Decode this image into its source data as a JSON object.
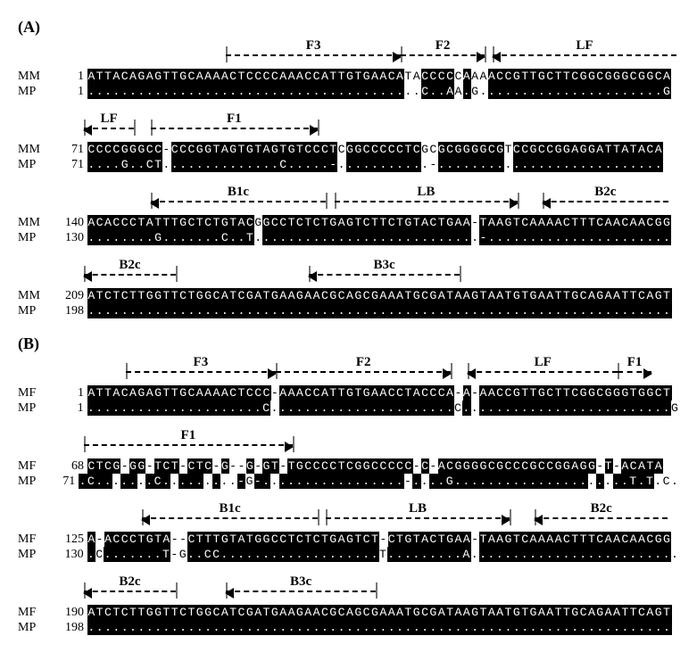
{
  "panelA": {
    "label": "(A)",
    "charWidth": 9.35,
    "rows": [
      {
        "primers": [
          {
            "name": "F3",
            "start": 17,
            "end": 37,
            "dir": "right"
          },
          {
            "name": "F2",
            "start": 38,
            "end": 47,
            "dir": "right",
            "continues": true
          },
          {
            "name": "LF",
            "start": 49,
            "end": 70,
            "dir": "left",
            "continues": true
          }
        ],
        "seqs": [
          {
            "label": "MM",
            "pos": 1,
            "seq": "ATTACAGAGTTGCAAAACTCCCCAAACCATTGTGAACATACCCCCAAAACCGTTGCTTCGGCGGGCGGCA",
            "highlight": [
              [
                0,
                37
              ],
              [
                40,
                43
              ],
              [
                45,
                45
              ],
              [
                48,
                69
              ]
            ]
          },
          {
            "label": "MP",
            "pos": 1,
            "seq": "........................................C..AA.G......................G",
            "highlight": [
              [
                0,
                37
              ],
              [
                40,
                43
              ],
              [
                45,
                45
              ],
              [
                48,
                69
              ]
            ]
          }
        ]
      },
      {
        "primers": [
          {
            "name": "LF",
            "start": 0,
            "end": 5,
            "dir": "left"
          },
          {
            "name": "F1",
            "start": 8,
            "end": 27,
            "dir": "right"
          }
        ],
        "seqs": [
          {
            "label": "MM",
            "pos": 71,
            "seq": "CCCCGGGCC-CCCGGTAGTGTAGTGTCCCTCGGCCCCCTCGCGCGGGGCGTCCGCCGGAGGATTATACA",
            "highlight": [
              [
                0,
                4
              ],
              [
                5,
                8
              ],
              [
                10,
                17
              ],
              [
                18,
                22
              ],
              [
                23,
                25
              ],
              [
                26,
                29
              ],
              [
                31,
                39
              ],
              [
                42,
                49
              ],
              [
                51,
                68
              ]
            ]
          },
          {
            "label": "MP",
            "pos": 71,
            "seq": "....G..CT..............C.....-...........-...........................",
            "highlight": [
              [
                0,
                4
              ],
              [
                5,
                8
              ],
              [
                10,
                17
              ],
              [
                18,
                22
              ],
              [
                23,
                25
              ],
              [
                26,
                29
              ],
              [
                31,
                39
              ],
              [
                42,
                49
              ],
              [
                51,
                68
              ]
            ]
          }
        ]
      },
      {
        "primers": [
          {
            "name": "B1c",
            "start": 8,
            "end": 28,
            "dir": "left"
          },
          {
            "name": "LB",
            "start": 30,
            "end": 51,
            "dir": "right"
          },
          {
            "name": "B2c",
            "start": 55,
            "end": 69,
            "dir": "left",
            "continues": true
          }
        ],
        "seqs": [
          {
            "label": "MM",
            "pos": 140,
            "seq": "ACACCCTATTTGCTCTGTACGGCCTCTCTGAGTCTTCTGTACTGAA-TAAGTCAAAACTTTCAACAACGG",
            "highlight": [
              [
                0,
                6
              ],
              [
                7,
                8
              ],
              [
                9,
                12
              ],
              [
                13,
                14
              ],
              [
                15,
                16
              ],
              [
                17,
                19
              ],
              [
                21,
                45
              ],
              [
                47,
                69
              ]
            ]
          },
          {
            "label": "MP",
            "pos": 130,
            "seq": "........G.......C..T...........................-......................",
            "highlight": [
              [
                0,
                6
              ],
              [
                7,
                8
              ],
              [
                9,
                12
              ],
              [
                13,
                14
              ],
              [
                15,
                16
              ],
              [
                17,
                19
              ],
              [
                21,
                45
              ],
              [
                47,
                69
              ]
            ]
          }
        ]
      },
      {
        "primers": [
          {
            "name": "B2c",
            "start": 0,
            "end": 10,
            "dir": "left"
          },
          {
            "name": "B3c",
            "start": 27,
            "end": 44,
            "dir": "left"
          }
        ],
        "seqs": [
          {
            "label": "MM",
            "pos": 209,
            "seq": "ATCTCTTGGTTCTGGCATCGATGAAGAACGCAGCGAAATGCGATAAGTAATGTGAATTGCAGAATTCAGT",
            "highlight": [
              [
                0,
                69
              ]
            ]
          },
          {
            "label": "MP",
            "pos": 198,
            "seq": "......................................................................",
            "highlight": [
              [
                0,
                69
              ]
            ]
          }
        ]
      }
    ]
  },
  "panelB": {
    "label": "(B)",
    "charWidth": 9.35,
    "rows": [
      {
        "primers": [
          {
            "name": "F3",
            "start": 5,
            "end": 22,
            "dir": "right"
          },
          {
            "name": "F2",
            "start": 23,
            "end": 43,
            "dir": "right"
          },
          {
            "name": "LF",
            "start": 46,
            "end": 63,
            "dir": "left"
          },
          {
            "name": "F1",
            "start": 64,
            "end": 67,
            "dir": "right",
            "continues": true
          }
        ],
        "seqs": [
          {
            "label": "MF",
            "pos": 1,
            "seq": "ATTACAGAGTTGCAAAACTCCC-AAACCATTGTGAACCTACCCA-A-AACCGTTGCTTCGGCGGGTGGCT",
            "highlight": [
              [
                0,
                21
              ],
              [
                23,
                43
              ],
              [
                45,
                45
              ],
              [
                47,
                64
              ],
              [
                65,
                69
              ]
            ]
          },
          {
            "label": "MP",
            "pos": 1,
            "seq": ".....................C......................C.........................G",
            "highlight": [
              [
                0,
                21
              ],
              [
                23,
                43
              ],
              [
                45,
                45
              ],
              [
                47,
                64
              ],
              [
                65,
                69
              ]
            ]
          }
        ]
      },
      {
        "primers": [
          {
            "name": "F1",
            "start": 0,
            "end": 24,
            "dir": "right"
          }
        ],
        "seqs": [
          {
            "label": "MF",
            "pos": 68,
            "seq": "CTCG-GG-TCT-CTC-G--G-GT-TGCCCCTCGGCCCCC-C-ACGGGGCGCCCGCCGGAGG-T-ACATA",
            "highlight": [
              [
                0,
                3
              ],
              [
                5,
                6
              ],
              [
                8,
                10
              ],
              [
                12,
                14
              ],
              [
                16,
                16
              ],
              [
                19,
                19
              ],
              [
                21,
                22
              ],
              [
                24,
                30
              ],
              [
                31,
                38
              ],
              [
                40,
                40
              ],
              [
                42,
                48
              ],
              [
                49,
                60
              ],
              [
                62,
                62
              ],
              [
                64,
                68
              ]
            ]
          },
          {
            "label": "MP",
            "pos": 71,
            "seq": ".C.......C.........-G-.................-....G.....................T.T.C.",
            "highlight": [
              [
                0,
                3
              ],
              [
                5,
                6
              ],
              [
                8,
                10
              ],
              [
                12,
                14
              ],
              [
                16,
                16
              ],
              [
                19,
                19
              ],
              [
                21,
                22
              ],
              [
                24,
                30
              ],
              [
                31,
                38
              ],
              [
                40,
                40
              ],
              [
                42,
                48
              ],
              [
                49,
                60
              ],
              [
                62,
                62
              ],
              [
                64,
                68
              ]
            ]
          }
        ]
      },
      {
        "primers": [
          {
            "name": "B1c",
            "start": 7,
            "end": 27,
            "dir": "left"
          },
          {
            "name": "LB",
            "start": 29,
            "end": 50,
            "dir": "right"
          },
          {
            "name": "B2c",
            "start": 54,
            "end": 69,
            "dir": "left",
            "continues": true
          }
        ],
        "seqs": [
          {
            "label": "MF",
            "pos": 125,
            "seq": "A-ACCCTGTA--CTTTGTATGGCCTCTCTGAGTCT-CTGTACTGAA-TAAGTCAAAACTTTCAACAACGG",
            "highlight": [
              [
                0,
                0
              ],
              [
                2,
                9
              ],
              [
                12,
                14
              ],
              [
                15,
                34
              ],
              [
                36,
                45
              ],
              [
                47,
                69
              ]
            ]
          },
          {
            "label": "MP",
            "pos": 130,
            "seq": ".C.......T-G..CC...................T.........A.........................",
            "highlight": [
              [
                0,
                0
              ],
              [
                2,
                9
              ],
              [
                12,
                14
              ],
              [
                15,
                34
              ],
              [
                36,
                45
              ],
              [
                47,
                69
              ]
            ]
          }
        ]
      },
      {
        "primers": [
          {
            "name": "B2c",
            "start": 0,
            "end": 10,
            "dir": "left"
          },
          {
            "name": "B3c",
            "start": 17,
            "end": 34,
            "dir": "left"
          }
        ],
        "seqs": [
          {
            "label": "MF",
            "pos": 190,
            "seq": "ATCTCTTGGTTCTGGCATCGATGAAGAACGCAGCGAAATGCGATAAGTAATGTGAATTGCAGAATTCAGT",
            "highlight": [
              [
                0,
                69
              ]
            ]
          },
          {
            "label": "MP",
            "pos": 198,
            "seq": "......................................................................",
            "highlight": [
              [
                0,
                69
              ]
            ]
          }
        ]
      }
    ]
  }
}
